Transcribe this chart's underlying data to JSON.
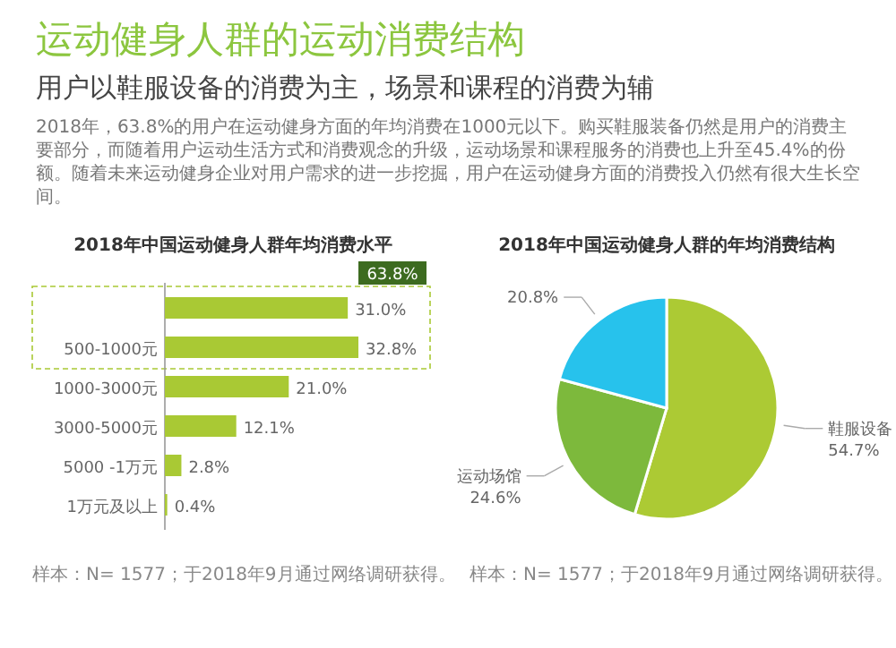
{
  "chart_data": [
    {
      "type": "other",
      "title": "运动健身人群的运动消费结构",
      "subtitle": "用户以鞋服设备的消费为主，场景和课程的消费为辅",
      "annotations": [
        "2018年，63.8%的用户在运动健身方面的年均消费在1000元以下。购买鞋服装备仍然是用户的消费主要部分，而随着用户运动生活方式和消费观念的升级，运动场景和课程服务的消费也上升至45.4%的份额。随着未来运动健身企业对用户需求的进一步挖掘，用户在运动健身方面的消费投入仍然有很大生长空间。"
      ]
    },
    {
      "type": "bar",
      "orientation": "horizontal",
      "title": "2018年中国运动健身人群年均消费水平",
      "categories": [
        null,
        "500-1000元",
        "1000-3000元",
        "3000-5000元",
        "5000 -1万元",
        "1万元及以上"
      ],
      "values": [
        31.0,
        32.8,
        21.0,
        12.1,
        2.8,
        0.4
      ],
      "value_labels": [
        "31.0%",
        "32.8%",
        "21.0%",
        "12.1%",
        "2.8%",
        "0.4%"
      ],
      "color": "#a9c934",
      "annotations": [
        "63.8%",
        "样本：N= 1577；于2018年9月通过网络调研获得。"
      ]
    },
    {
      "type": "pie",
      "title": "2018年中国运动健身人群的年均消费结构",
      "categories": [
        "鞋服设备",
        "运动场馆",
        null
      ],
      "values": [
        54.7,
        24.6,
        20.8
      ],
      "value_labels": [
        "54.7%",
        "24.6%",
        "20.8%"
      ],
      "colors": [
        "#acca34",
        "#7db93c",
        "#27c2ec"
      ],
      "annotations": [
        "样本：N= 1577；于2018年9月通过网络调研获得。"
      ]
    }
  ]
}
